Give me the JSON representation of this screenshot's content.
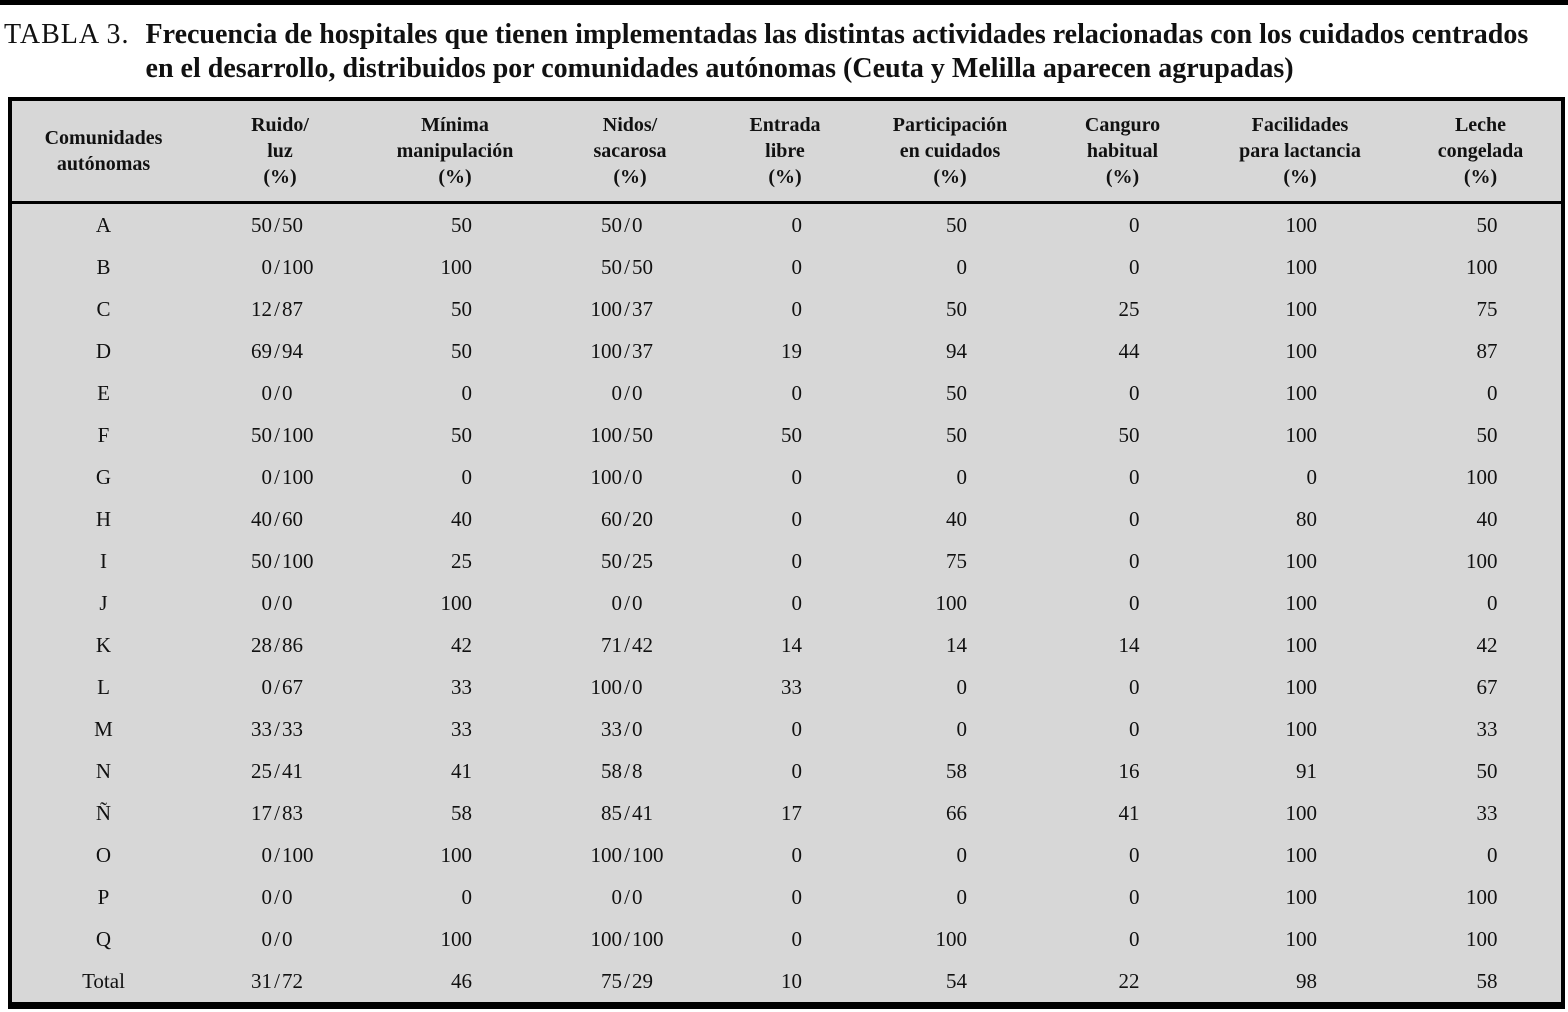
{
  "title": {
    "label": "TABLA 3.",
    "text": "Frecuencia de hospitales que tienen implementadas las distintas actividades relacionadas con los cuidados centrados en el desarrollo, distribuidos por comunidades autónomas (Ceuta y Melilla aparecen agrupadas)"
  },
  "colors": {
    "table_background": "#d7d7d7",
    "border": "#000000",
    "text": "#111111"
  },
  "table": {
    "columns": [
      {
        "id": "comunidades",
        "type": "label",
        "label_lines": [
          "Comunidades",
          "autónomas"
        ]
      },
      {
        "id": "ruido-luz",
        "type": "pair",
        "label_lines": [
          "Ruido/",
          "luz",
          "(%)"
        ]
      },
      {
        "id": "minima-manipulacion",
        "type": "num",
        "label_lines": [
          "Mínima",
          "manipulación",
          "(%)"
        ]
      },
      {
        "id": "nidos-sacarosa",
        "type": "pair",
        "label_lines": [
          "Nidos/",
          "sacarosa",
          "(%)"
        ]
      },
      {
        "id": "entrada-libre",
        "type": "num",
        "label_lines": [
          "Entrada",
          "libre",
          "(%)"
        ]
      },
      {
        "id": "participacion-cuidados",
        "type": "num",
        "label_lines": [
          "Participación",
          "en cuidados",
          "(%)"
        ]
      },
      {
        "id": "canguro-habitual",
        "type": "num",
        "label_lines": [
          "Canguro",
          "habitual",
          "(%)"
        ]
      },
      {
        "id": "facilidades-lactancia",
        "type": "num",
        "label_lines": [
          "Facilidades",
          "para lactancia",
          "(%)"
        ]
      },
      {
        "id": "leche-congelada",
        "type": "num",
        "label_lines": [
          "Leche",
          "congelada",
          "(%)"
        ]
      }
    ],
    "rows": [
      {
        "label": "A",
        "cells": [
          "50/50",
          "50",
          "50/0",
          "0",
          "50",
          "0",
          "100",
          "50"
        ]
      },
      {
        "label": "B",
        "cells": [
          "0/100",
          "100",
          "50/50",
          "0",
          "0",
          "0",
          "100",
          "100"
        ]
      },
      {
        "label": "C",
        "cells": [
          "12/87",
          "50",
          "100/37",
          "0",
          "50",
          "25",
          "100",
          "75"
        ]
      },
      {
        "label": "D",
        "cells": [
          "69/94",
          "50",
          "100/37",
          "19",
          "94",
          "44",
          "100",
          "87"
        ]
      },
      {
        "label": "E",
        "cells": [
          "0/0",
          "0",
          "0/0",
          "0",
          "50",
          "0",
          "100",
          "0"
        ]
      },
      {
        "label": "F",
        "cells": [
          "50/100",
          "50",
          "100/50",
          "50",
          "50",
          "50",
          "100",
          "50"
        ]
      },
      {
        "label": "G",
        "cells": [
          "0/100",
          "0",
          "100/0",
          "0",
          "0",
          "0",
          "0",
          "100"
        ]
      },
      {
        "label": "H",
        "cells": [
          "40/60",
          "40",
          "60/20",
          "0",
          "40",
          "0",
          "80",
          "40"
        ]
      },
      {
        "label": "I",
        "cells": [
          "50/100",
          "25",
          "50/25",
          "0",
          "75",
          "0",
          "100",
          "100"
        ]
      },
      {
        "label": "J",
        "cells": [
          "0/0",
          "100",
          "0/0",
          "0",
          "100",
          "0",
          "100",
          "0"
        ]
      },
      {
        "label": "K",
        "cells": [
          "28/86",
          "42",
          "71/42",
          "14",
          "14",
          "14",
          "100",
          "42"
        ]
      },
      {
        "label": "L",
        "cells": [
          "0/67",
          "33",
          "100/0",
          "33",
          "0",
          "0",
          "100",
          "67"
        ]
      },
      {
        "label": "M",
        "cells": [
          "33/33",
          "33",
          "33/0",
          "0",
          "0",
          "0",
          "100",
          "33"
        ]
      },
      {
        "label": "N",
        "cells": [
          "25/41",
          "41",
          "58/8",
          "0",
          "58",
          "16",
          "91",
          "50"
        ]
      },
      {
        "label": "Ñ",
        "cells": [
          "17/83",
          "58",
          "85/41",
          "17",
          "66",
          "41",
          "100",
          "33"
        ]
      },
      {
        "label": "O",
        "cells": [
          "0/100",
          "100",
          "100/100",
          "0",
          "0",
          "0",
          "100",
          "0"
        ]
      },
      {
        "label": "P",
        "cells": [
          "0/0",
          "0",
          "0/0",
          "0",
          "0",
          "0",
          "100",
          "100"
        ]
      },
      {
        "label": "Q",
        "cells": [
          "0/0",
          "100",
          "100/100",
          "0",
          "100",
          "0",
          "100",
          "100"
        ]
      },
      {
        "label": "Total",
        "cells": [
          "31/72",
          "46",
          "75/29",
          "10",
          "54",
          "22",
          "98",
          "58"
        ]
      }
    ]
  }
}
